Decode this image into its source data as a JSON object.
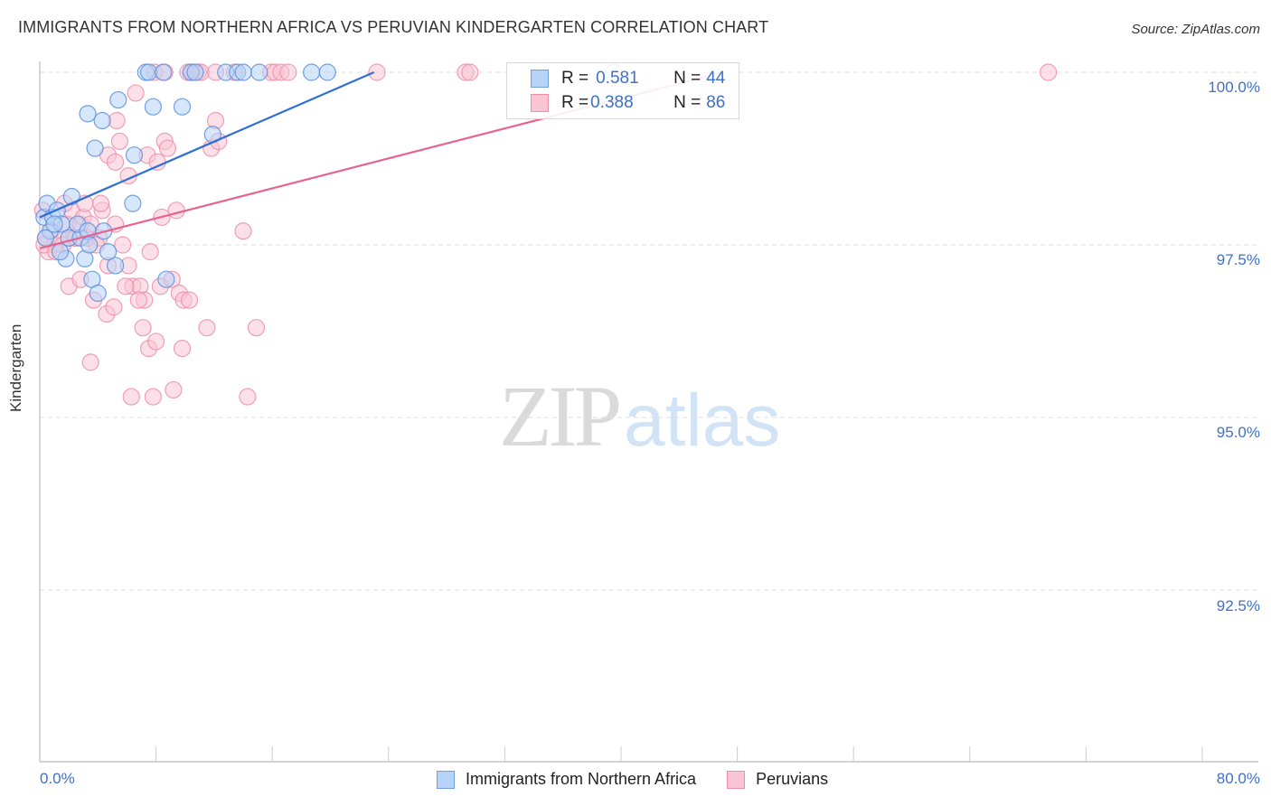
{
  "header": {
    "title": "IMMIGRANTS FROM NORTHERN AFRICA VS PERUVIAN KINDERGARTEN CORRELATION CHART",
    "source": "Source: ZipAtlas.com"
  },
  "legend": {
    "series": [
      {
        "name": "Immigrants from Northern Africa",
        "r_label": "R = ",
        "r_value": "0.581",
        "n_label": "N = ",
        "n_value": "44",
        "color": "#6f9de0",
        "fill": "#b7d3f7"
      },
      {
        "name": "Peruvians",
        "r_label": "R = ",
        "r_value": "0.388",
        "n_label": "N = ",
        "n_value": "86",
        "color": "#ec8fab",
        "fill": "#f9c4d4"
      }
    ]
  },
  "axes": {
    "ylabel": "Kindergarten",
    "yticks": [
      "100.0%",
      "97.5%",
      "95.0%",
      "92.5%"
    ],
    "xmin_label": "0.0%",
    "xmax_label": "80.0%"
  },
  "watermark": {
    "zip": "ZIP",
    "atlas": "atlas"
  },
  "colors": {
    "blue_line": "#2f6fd6",
    "pink_line": "#e8628f",
    "tick_text": "#3d71c9",
    "grid": "#dddddd"
  },
  "chart_data": {
    "type": "scatter",
    "title": "IMMIGRANTS FROM NORTHERN AFRICA VS PERUVIAN KINDERGARTEN CORRELATION CHART",
    "xlabel": "",
    "ylabel": "Kindergarten",
    "xlim": [
      0,
      80
    ],
    "ylim": [
      90.5,
      100.2
    ],
    "x_tick_labels": [
      "0.0%",
      "80.0%"
    ],
    "y_tick_labels": [
      "92.5%",
      "95.0%",
      "97.5%",
      "100.0%"
    ],
    "grid": true,
    "legend_position": "top-center",
    "series": [
      {
        "name": "Immigrants from Northern Africa",
        "R": 0.581,
        "N": 44,
        "trend": {
          "x": [
            0,
            23
          ],
          "y": [
            97.9,
            100.0
          ]
        },
        "points": [
          [
            0.3,
            97.9
          ],
          [
            0.5,
            98.1
          ],
          [
            0.7,
            97.7
          ],
          [
            0.9,
            97.9
          ],
          [
            1.2,
            98.0
          ],
          [
            1.5,
            97.8
          ],
          [
            0.4,
            97.6
          ],
          [
            2.0,
            97.6
          ],
          [
            2.2,
            98.2
          ],
          [
            1.8,
            97.3
          ],
          [
            2.8,
            97.6
          ],
          [
            3.1,
            97.3
          ],
          [
            3.6,
            97.0
          ],
          [
            4.0,
            96.8
          ],
          [
            1.4,
            97.4
          ],
          [
            1.0,
            97.8
          ],
          [
            2.6,
            97.8
          ],
          [
            3.3,
            97.7
          ],
          [
            4.4,
            97.7
          ],
          [
            6.4,
            98.1
          ],
          [
            3.4,
            97.5
          ],
          [
            5.2,
            97.2
          ],
          [
            8.7,
            97.0
          ],
          [
            4.7,
            97.4
          ],
          [
            3.8,
            98.9
          ],
          [
            4.3,
            99.3
          ],
          [
            3.3,
            99.4
          ],
          [
            5.4,
            99.6
          ],
          [
            6.5,
            98.8
          ],
          [
            7.8,
            99.5
          ],
          [
            9.8,
            99.5
          ],
          [
            11.9,
            99.1
          ],
          [
            7.3,
            100.0
          ],
          [
            7.5,
            100.0
          ],
          [
            8.5,
            100.0
          ],
          [
            10.4,
            100.0
          ],
          [
            10.7,
            100.0
          ],
          [
            12.8,
            100.0
          ],
          [
            13.6,
            100.0
          ],
          [
            14.0,
            100.0
          ],
          [
            15.1,
            100.0
          ],
          [
            18.7,
            100.0
          ],
          [
            19.8,
            100.0
          ],
          [
            39.5,
            100.0
          ]
        ]
      },
      {
        "name": "Peruvians",
        "R": 0.388,
        "N": 86,
        "trend": {
          "x": [
            0,
            47
          ],
          "y": [
            97.45,
            100.0
          ]
        },
        "points": [
          [
            0.2,
            98.0
          ],
          [
            0.4,
            97.6
          ],
          [
            0.6,
            97.4
          ],
          [
            0.8,
            97.7
          ],
          [
            1.0,
            97.5
          ],
          [
            1.3,
            97.6
          ],
          [
            1.6,
            97.5
          ],
          [
            1.9,
            97.8
          ],
          [
            2.2,
            98.0
          ],
          [
            2.5,
            97.6
          ],
          [
            2.8,
            97.8
          ],
          [
            3.0,
            97.9
          ],
          [
            3.3,
            97.6
          ],
          [
            3.5,
            97.8
          ],
          [
            4.1,
            97.6
          ],
          [
            4.3,
            98.0
          ],
          [
            4.7,
            97.2
          ],
          [
            5.2,
            97.8
          ],
          [
            5.7,
            97.5
          ],
          [
            6.1,
            97.2
          ],
          [
            6.4,
            96.9
          ],
          [
            6.9,
            96.9
          ],
          [
            7.2,
            96.7
          ],
          [
            7.6,
            97.4
          ],
          [
            8.3,
            96.9
          ],
          [
            9.1,
            97.0
          ],
          [
            9.6,
            96.8
          ],
          [
            9.9,
            96.7
          ],
          [
            10.3,
            96.7
          ],
          [
            14.0,
            97.7
          ],
          [
            2.0,
            96.9
          ],
          [
            2.8,
            97.0
          ],
          [
            3.7,
            96.7
          ],
          [
            4.6,
            96.5
          ],
          [
            5.1,
            96.6
          ],
          [
            6.8,
            96.7
          ],
          [
            7.1,
            96.3
          ],
          [
            7.5,
            96.0
          ],
          [
            8.0,
            96.1
          ],
          [
            9.8,
            96.0
          ],
          [
            11.5,
            96.3
          ],
          [
            14.9,
            96.3
          ],
          [
            3.5,
            95.8
          ],
          [
            6.3,
            95.3
          ],
          [
            7.8,
            95.3
          ],
          [
            9.2,
            95.4
          ],
          [
            14.3,
            95.3
          ],
          [
            4.7,
            98.8
          ],
          [
            5.2,
            98.7
          ],
          [
            5.5,
            99.0
          ],
          [
            6.1,
            98.5
          ],
          [
            7.4,
            98.8
          ],
          [
            8.1,
            98.7
          ],
          [
            8.6,
            99.0
          ],
          [
            8.8,
            98.9
          ],
          [
            9.4,
            98.0
          ],
          [
            8.4,
            97.9
          ],
          [
            11.8,
            98.9
          ],
          [
            12.3,
            99.0
          ],
          [
            12.1,
            99.3
          ],
          [
            4.2,
            98.1
          ],
          [
            3.1,
            98.1
          ],
          [
            1.7,
            98.1
          ],
          [
            6.6,
            99.7
          ],
          [
            5.3,
            99.3
          ],
          [
            7.9,
            100.0
          ],
          [
            8.6,
            100.0
          ],
          [
            10.2,
            100.0
          ],
          [
            10.5,
            100.0
          ],
          [
            10.9,
            100.0
          ],
          [
            11.1,
            100.0
          ],
          [
            12.1,
            100.0
          ],
          [
            13.4,
            100.0
          ],
          [
            15.9,
            100.0
          ],
          [
            16.2,
            100.0
          ],
          [
            16.6,
            100.0
          ],
          [
            17.1,
            100.0
          ],
          [
            23.2,
            100.0
          ],
          [
            29.3,
            100.0
          ],
          [
            29.6,
            100.0
          ],
          [
            69.4,
            100.0
          ],
          [
            0.3,
            97.5
          ],
          [
            1.1,
            97.4
          ],
          [
            2.4,
            97.6
          ],
          [
            3.9,
            97.5
          ],
          [
            5.9,
            96.9
          ]
        ]
      }
    ]
  }
}
